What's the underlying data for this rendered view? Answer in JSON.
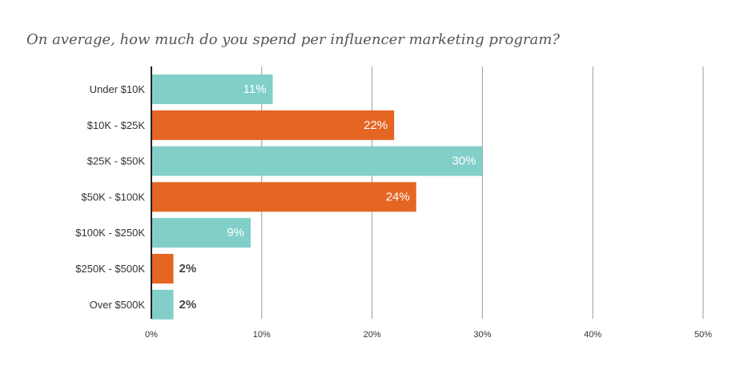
{
  "title": "On average, how much do you spend per influencer marketing program?",
  "colors": {
    "teal": "#81cfc8",
    "orange": "#e56523",
    "grid": "#999999",
    "axis": "#222222",
    "label_inside": "#ffffff",
    "label_outside": "#444444",
    "text": "#333333"
  },
  "chart_data": {
    "type": "bar",
    "orientation": "horizontal",
    "title": "On average, how much do you spend per influencer marketing program?",
    "categories": [
      "Under $10K",
      "$10K - $25K",
      "$25K - $50K",
      "$50K - $100K",
      "$100K - $250K",
      "$250K - $500K",
      "Over $500K"
    ],
    "values": [
      11,
      22,
      30,
      24,
      9,
      2,
      2
    ],
    "data_labels": [
      "11%",
      "22%",
      "30%",
      "24%",
      "9%",
      "2%",
      "2%"
    ],
    "bar_colors": [
      "teal",
      "orange",
      "teal",
      "orange",
      "teal",
      "orange",
      "teal"
    ],
    "xlim": [
      0,
      50
    ],
    "x_ticks": [
      0,
      10,
      20,
      30,
      40,
      50
    ],
    "x_tick_labels": [
      "0%",
      "10%",
      "20%",
      "30%",
      "40%",
      "50%"
    ],
    "grid": true,
    "legend": "none",
    "xlabel": "",
    "ylabel": ""
  }
}
